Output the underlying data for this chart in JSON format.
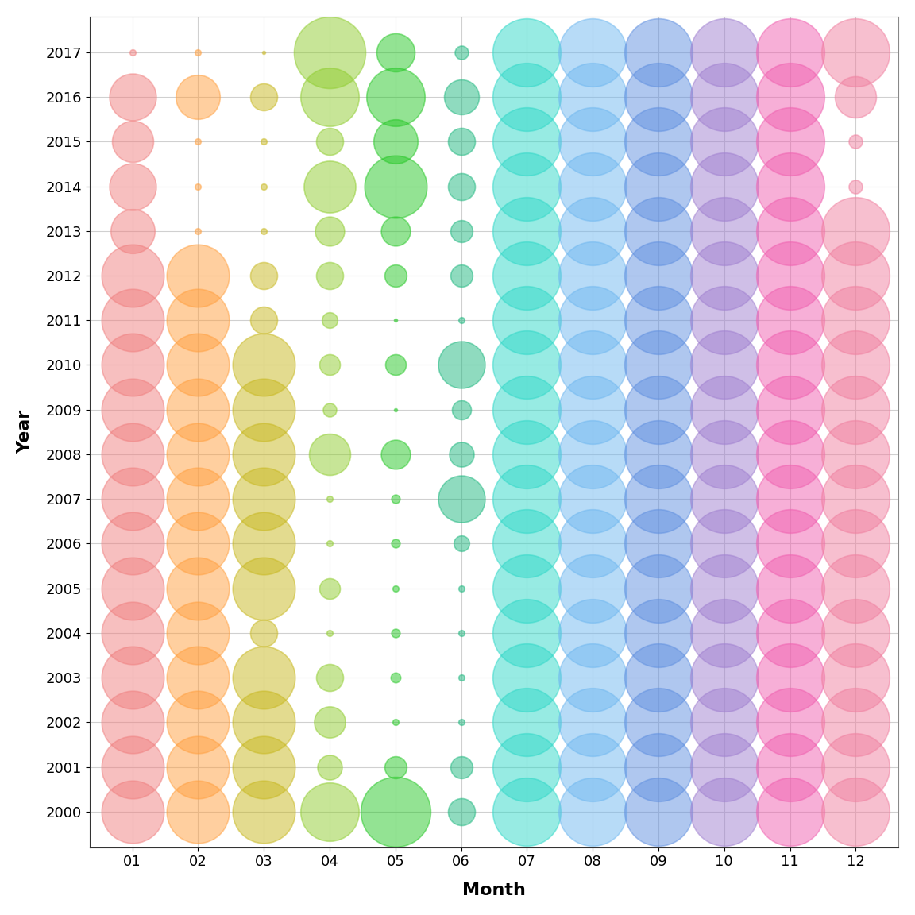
{
  "years": [
    2000,
    2001,
    2002,
    2003,
    2004,
    2005,
    2006,
    2007,
    2008,
    2009,
    2010,
    2011,
    2012,
    2013,
    2014,
    2015,
    2016,
    2017
  ],
  "months": [
    1,
    2,
    3,
    4,
    5,
    6,
    7,
    8,
    9,
    10,
    11,
    12
  ],
  "month_labels": [
    "01",
    "02",
    "03",
    "04",
    "05",
    "06",
    "07",
    "08",
    "09",
    "10",
    "11",
    "12"
  ],
  "month_colors": {
    "1": "#F08080",
    "2": "#FFA040",
    "3": "#C8B820",
    "4": "#90CD30",
    "5": "#28C828",
    "6": "#20B880",
    "7": "#30D8C8",
    "8": "#70B8F0",
    "9": "#6090E0",
    "10": "#A080D0",
    "11": "#F060B0",
    "12": "#F080A0"
  },
  "bubble_sizes": {
    "2000": {
      "1": 3200,
      "2": 3200,
      "3": 3200,
      "4": 2800,
      "5": 4000,
      "6": 600,
      "7": 3800,
      "8": 3800,
      "9": 3800,
      "10": 3800,
      "11": 3800,
      "12": 3800
    },
    "2001": {
      "1": 3200,
      "2": 3200,
      "3": 3200,
      "4": 500,
      "5": 400,
      "6": 400,
      "7": 3800,
      "8": 3800,
      "9": 3800,
      "10": 3800,
      "11": 3800,
      "12": 3800
    },
    "2002": {
      "1": 3200,
      "2": 3200,
      "3": 3200,
      "4": 800,
      "5": 30,
      "6": 30,
      "7": 3800,
      "8": 3800,
      "9": 3800,
      "10": 3800,
      "11": 3800,
      "12": 3800
    },
    "2003": {
      "1": 3200,
      "2": 3200,
      "3": 3200,
      "4": 600,
      "5": 80,
      "6": 30,
      "7": 3800,
      "8": 3800,
      "9": 3800,
      "10": 3800,
      "11": 3800,
      "12": 3800
    },
    "2004": {
      "1": 3200,
      "2": 3200,
      "3": 600,
      "4": 30,
      "5": 60,
      "6": 30,
      "7": 3800,
      "8": 3800,
      "9": 3800,
      "10": 3800,
      "11": 3800,
      "12": 3800
    },
    "2005": {
      "1": 3200,
      "2": 3200,
      "3": 3200,
      "4": 350,
      "5": 30,
      "6": 30,
      "7": 3800,
      "8": 3800,
      "9": 3800,
      "10": 3800,
      "11": 3800,
      "12": 3800
    },
    "2006": {
      "1": 3200,
      "2": 3200,
      "3": 3200,
      "4": 30,
      "5": 60,
      "6": 200,
      "7": 3800,
      "8": 3800,
      "9": 3800,
      "10": 3800,
      "11": 3800,
      "12": 3800
    },
    "2007": {
      "1": 3200,
      "2": 3200,
      "3": 3200,
      "4": 30,
      "5": 60,
      "6": 1800,
      "7": 3800,
      "8": 3800,
      "9": 3800,
      "10": 3800,
      "11": 3800,
      "12": 3800
    },
    "2008": {
      "1": 3200,
      "2": 3200,
      "3": 3200,
      "4": 1400,
      "5": 700,
      "6": 500,
      "7": 3800,
      "8": 3800,
      "9": 3800,
      "10": 3800,
      "11": 3800,
      "12": 3800
    },
    "2009": {
      "1": 3200,
      "2": 3200,
      "3": 3200,
      "4": 150,
      "5": 8,
      "6": 300,
      "7": 3800,
      "8": 3800,
      "9": 3800,
      "10": 3800,
      "11": 3800,
      "12": 3800
    },
    "2010": {
      "1": 3200,
      "2": 3200,
      "3": 3200,
      "4": 350,
      "5": 350,
      "6": 1800,
      "7": 3800,
      "8": 3800,
      "9": 3800,
      "10": 3800,
      "11": 3800,
      "12": 3800
    },
    "2011": {
      "1": 3200,
      "2": 3200,
      "3": 600,
      "4": 200,
      "5": 8,
      "6": 30,
      "7": 3800,
      "8": 3800,
      "9": 3800,
      "10": 3800,
      "11": 3800,
      "12": 3800
    },
    "2012": {
      "1": 3200,
      "2": 3200,
      "3": 600,
      "4": 600,
      "5": 400,
      "6": 400,
      "7": 3800,
      "8": 3800,
      "9": 3800,
      "10": 3800,
      "11": 3800,
      "12": 3800
    },
    "2013": {
      "1": 1600,
      "2": 30,
      "3": 30,
      "4": 700,
      "5": 700,
      "6": 400,
      "7": 3800,
      "8": 3800,
      "9": 3800,
      "10": 3800,
      "11": 3800,
      "12": 3800
    },
    "2014": {
      "1": 1800,
      "2": 30,
      "3": 30,
      "4": 2200,
      "5": 3200,
      "6": 600,
      "7": 3800,
      "8": 3800,
      "9": 3800,
      "10": 3800,
      "11": 3800,
      "12": 150
    },
    "2015": {
      "1": 1400,
      "2": 30,
      "3": 30,
      "4": 600,
      "5": 1600,
      "6": 600,
      "7": 3800,
      "8": 3800,
      "9": 3800,
      "10": 3800,
      "11": 3800,
      "12": 150
    },
    "2016": {
      "1": 1800,
      "2": 1600,
      "3": 600,
      "4": 2800,
      "5": 2800,
      "6": 1000,
      "7": 3800,
      "8": 3800,
      "9": 3800,
      "10": 3800,
      "11": 3800,
      "12": 1400
    },
    "2017": {
      "1": 30,
      "2": 30,
      "3": 8,
      "4": 4200,
      "5": 1200,
      "6": 150,
      "7": 3800,
      "8": 3800,
      "9": 3800,
      "10": 3800,
      "11": 3800,
      "12": 3800
    }
  },
  "xlabel": "Month",
  "ylabel": "Year",
  "background_color": "#ffffff",
  "grid_color": "#d0d0d0",
  "alpha": 0.5
}
